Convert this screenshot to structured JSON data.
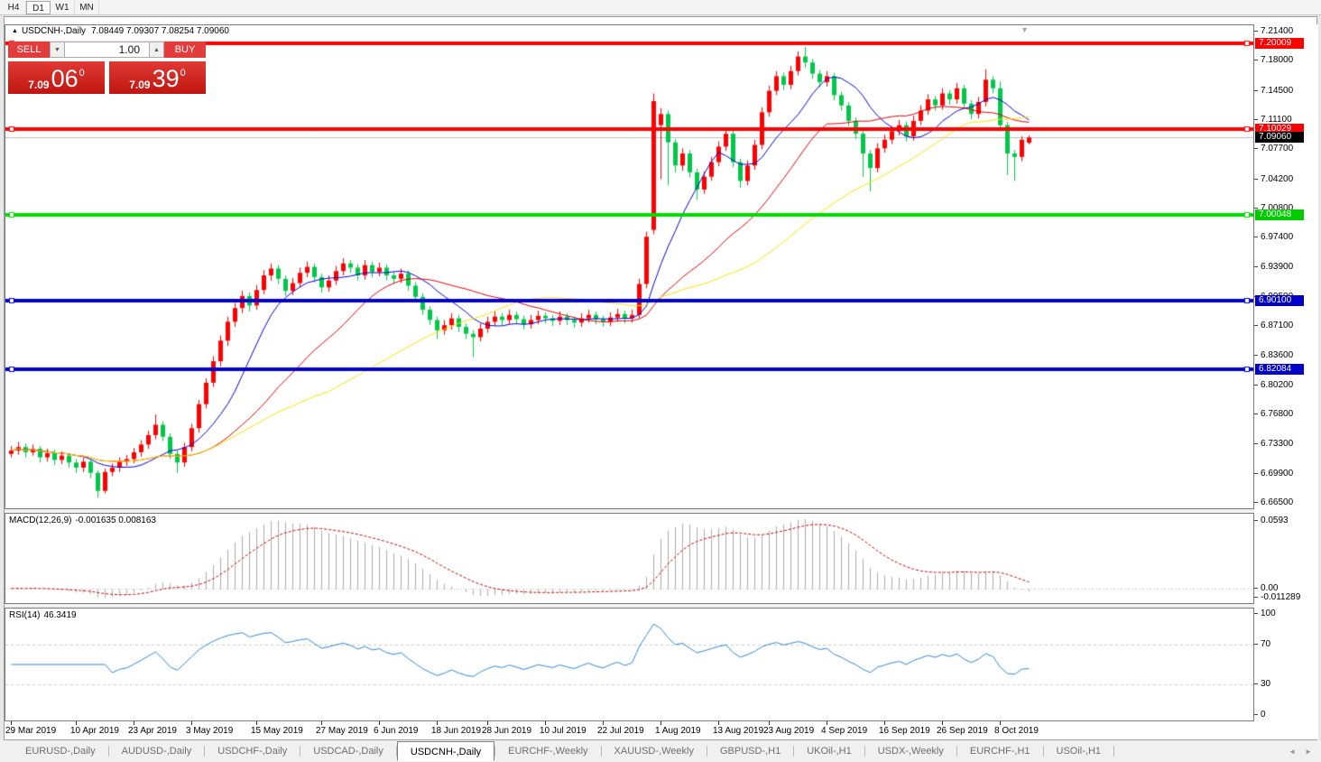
{
  "toolbar": {
    "periods": [
      {
        "label": "H4",
        "active": false
      },
      {
        "label": "D1",
        "active": true
      },
      {
        "label": "W1",
        "active": false
      },
      {
        "label": "MN",
        "active": false
      }
    ]
  },
  "icons": {
    "title_collapse": "▲",
    "chart_shift": "▼",
    "volume_down": "▼",
    "volume_up": "▲",
    "tab_scroll_left": "◄",
    "tab_scroll_right": "►"
  },
  "chart": {
    "symbol": "USDCNH-,Daily",
    "ohlc_text": "7.08449 7.09307 7.08254 7.09060"
  },
  "one_click": {
    "sell_label": "SELL",
    "buy_label": "BUY",
    "volume": "1.00",
    "sell_price_prefix": "7.09",
    "sell_price_big": "06",
    "sell_price_sup": "0",
    "buy_price_prefix": "7.09",
    "buy_price_big": "39",
    "buy_price_sup": "0"
  },
  "price_axis": {
    "ticks": [
      "7.21400",
      "7.18000",
      "7.14500",
      "7.11100",
      "7.07700",
      "7.04200",
      "7.00800",
      "6.97400",
      "6.93900",
      "6.90500",
      "6.87100",
      "6.83600",
      "6.80200",
      "6.76800",
      "6.73300",
      "6.69900",
      "6.66500"
    ],
    "badges": [
      {
        "value": "7.20009",
        "bg": "#FF0000"
      },
      {
        "value": "7.10029",
        "bg": "#FF0000"
      },
      {
        "value": "7.09060",
        "bg": "#000000"
      },
      {
        "value": "7.00048",
        "bg": "#00CC00"
      },
      {
        "value": "6.90100",
        "bg": "#0000C8"
      },
      {
        "value": "6.82084",
        "bg": "#0000C8"
      }
    ]
  },
  "indicators": {
    "macd": {
      "name": "MACD(12,26,9)",
      "values": "-0.001635 0.008163",
      "axis_top": "0.0593",
      "axis_zero": "0.00",
      "axis_bottom": "-0.011289"
    },
    "rsi": {
      "name": "RSI(14)",
      "value": "46.3419",
      "axis": [
        [
          "100",
          100
        ],
        [
          "70",
          70
        ],
        [
          "30",
          30
        ],
        [
          "0",
          0
        ]
      ]
    }
  },
  "tabs": {
    "items": [
      {
        "label": "EURUSD-,Daily",
        "active": false
      },
      {
        "label": "AUDUSD-,Daily",
        "active": false
      },
      {
        "label": "USDCHF-,Daily",
        "active": false
      },
      {
        "label": "USDCAD-,Daily",
        "active": false
      },
      {
        "label": "USDCNH-,Daily",
        "active": true
      },
      {
        "label": "EURCHF-,Weekly",
        "active": false
      },
      {
        "label": "XAUUSD-,Weekly",
        "active": false
      },
      {
        "label": "GBPUSD-,H1",
        "active": false
      },
      {
        "label": "UKOil-,H1",
        "active": false
      },
      {
        "label": "USDX-,Weekly",
        "active": false
      },
      {
        "label": "EURCHF-,H1",
        "active": false
      },
      {
        "label": "USOil-,H1",
        "active": false
      }
    ]
  },
  "chart_data": {
    "type": "candlestick",
    "symbol": "USDCNH",
    "timeframe": "Daily",
    "title": "USDCNH-,Daily",
    "ohlc_current": {
      "open": 7.08449,
      "high": 7.09307,
      "low": 7.08254,
      "close": 7.0906
    },
    "price_range": [
      6.665,
      7.214
    ],
    "current_price": 7.0906,
    "ma_periods": [
      10,
      25,
      45
    ],
    "macd_params": {
      "fast": 12,
      "slow": 26,
      "signal": 9
    },
    "rsi_period": 14,
    "rsi_levels": [
      70,
      30
    ],
    "colors": {
      "up": "#FF0000",
      "down": "#00C94A",
      "ma_fast": "#0000D8",
      "ma_mid": "#DE0000",
      "ma_slow": "#FFE000",
      "hline_red": "#FF0000",
      "hline_green": "#00DC00",
      "hline_blue": "#0000D0",
      "current_line": "#BFBFBF",
      "macd_bar": "#ABABAB",
      "macd_signal": "#CC0000",
      "rsi_line": "#2D87D4",
      "level_dash": "#C9C9C9"
    },
    "hlines": [
      {
        "price": 7.20009,
        "color": "#FF0000"
      },
      {
        "price": 7.10029,
        "color": "#FF0000"
      },
      {
        "price": 7.00048,
        "color": "#00DC00"
      },
      {
        "price": 6.901,
        "color": "#0000D0"
      },
      {
        "price": 6.82084,
        "color": "#0000D0"
      }
    ],
    "x_labels": [
      [
        "29 Mar 2019",
        0
      ],
      [
        "10 Apr 2019",
        9
      ],
      [
        "23 Apr 2019",
        17
      ],
      [
        "3 May 2019",
        25
      ],
      [
        "15 May 2019",
        34
      ],
      [
        "27 May 2019",
        43
      ],
      [
        "6 Jun 2019",
        51
      ],
      [
        "18 Jun 2019",
        59
      ],
      [
        "28 Jun 2019",
        66
      ],
      [
        "10 Jul 2019",
        74
      ],
      [
        "22 Jul 2019",
        82
      ],
      [
        "1 Aug 2019",
        90
      ],
      [
        "13 Aug 2019",
        98
      ],
      [
        "23 Aug 2019",
        105
      ],
      [
        "4 Sep 2019",
        113
      ],
      [
        "16 Sep 2019",
        121
      ],
      [
        "26 Sep 2019",
        129
      ],
      [
        "8 Oct 2019",
        137
      ]
    ],
    "candles": [
      [
        6.722,
        6.731,
        6.718,
        6.726
      ],
      [
        6.726,
        6.736,
        6.721,
        6.73
      ],
      [
        6.73,
        6.734,
        6.718,
        6.724
      ],
      [
        6.724,
        6.733,
        6.72,
        6.728
      ],
      [
        6.728,
        6.731,
        6.712,
        6.718
      ],
      [
        6.718,
        6.728,
        6.713,
        6.723
      ],
      [
        6.723,
        6.727,
        6.709,
        6.715
      ],
      [
        6.715,
        6.725,
        6.71,
        6.72
      ],
      [
        6.72,
        6.723,
        6.706,
        6.712
      ],
      [
        6.712,
        6.716,
        6.7,
        6.706
      ],
      [
        6.706,
        6.718,
        6.701,
        6.713
      ],
      [
        6.713,
        6.716,
        6.694,
        6.7
      ],
      [
        6.7,
        6.703,
        6.671,
        6.679
      ],
      [
        6.679,
        6.705,
        6.676,
        6.701
      ],
      [
        6.701,
        6.711,
        6.696,
        6.706
      ],
      [
        6.706,
        6.718,
        6.701,
        6.713
      ],
      [
        6.713,
        6.721,
        6.708,
        6.716
      ],
      [
        6.716,
        6.729,
        6.711,
        6.724
      ],
      [
        6.724,
        6.738,
        6.719,
        6.733
      ],
      [
        6.733,
        6.749,
        6.728,
        6.744
      ],
      [
        6.744,
        6.768,
        6.739,
        6.756
      ],
      [
        6.756,
        6.76,
        6.737,
        6.742
      ],
      [
        6.742,
        6.746,
        6.716,
        6.722
      ],
      [
        6.722,
        6.726,
        6.7,
        6.712
      ],
      [
        6.712,
        6.735,
        6.707,
        6.73
      ],
      [
        6.73,
        6.757,
        6.725,
        6.752
      ],
      [
        6.752,
        6.785,
        6.747,
        6.78
      ],
      [
        6.78,
        6.81,
        6.775,
        6.805
      ],
      [
        6.805,
        6.836,
        6.8,
        6.83
      ],
      [
        6.83,
        6.86,
        6.824,
        6.854
      ],
      [
        6.854,
        6.882,
        6.848,
        6.876
      ],
      [
        6.876,
        6.898,
        6.87,
        6.892
      ],
      [
        6.892,
        6.912,
        6.886,
        6.906
      ],
      [
        6.906,
        6.91,
        6.888,
        6.895
      ],
      [
        6.895,
        6.919,
        6.89,
        6.913
      ],
      [
        6.913,
        6.936,
        6.908,
        6.93
      ],
      [
        6.93,
        6.944,
        6.924,
        6.938
      ],
      [
        6.938,
        6.942,
        6.92,
        6.926
      ],
      [
        6.926,
        6.93,
        6.906,
        6.912
      ],
      [
        6.912,
        6.927,
        6.907,
        6.921
      ],
      [
        6.921,
        6.939,
        6.916,
        6.933
      ],
      [
        6.933,
        6.946,
        6.928,
        6.94
      ],
      [
        6.94,
        6.944,
        6.922,
        6.928
      ],
      [
        6.928,
        6.932,
        6.91,
        6.916
      ],
      [
        6.916,
        6.93,
        6.911,
        6.924
      ],
      [
        6.924,
        6.941,
        6.919,
        6.935
      ],
      [
        6.935,
        6.95,
        6.93,
        6.944
      ],
      [
        6.944,
        6.948,
        6.933,
        6.939
      ],
      [
        6.939,
        6.943,
        6.924,
        6.93
      ],
      [
        6.93,
        6.948,
        6.925,
        6.942
      ],
      [
        6.942,
        6.946,
        6.928,
        6.934
      ],
      [
        6.934,
        6.945,
        6.929,
        6.939
      ],
      [
        6.939,
        6.943,
        6.924,
        6.93
      ],
      [
        6.93,
        6.934,
        6.92,
        6.926
      ],
      [
        6.926,
        6.938,
        6.921,
        6.932
      ],
      [
        6.932,
        6.936,
        6.912,
        6.918
      ],
      [
        6.918,
        6.922,
        6.899,
        6.905
      ],
      [
        6.905,
        6.909,
        6.884,
        6.89
      ],
      [
        6.89,
        6.894,
        6.872,
        6.878
      ],
      [
        6.878,
        6.882,
        6.856,
        6.866
      ],
      [
        6.866,
        6.878,
        6.861,
        6.872
      ],
      [
        6.872,
        6.886,
        6.867,
        6.88
      ],
      [
        6.88,
        6.884,
        6.864,
        6.87
      ],
      [
        6.87,
        6.874,
        6.856,
        6.862
      ],
      [
        6.862,
        6.866,
        6.835,
        6.858
      ],
      [
        6.858,
        6.874,
        6.853,
        6.868
      ],
      [
        6.868,
        6.882,
        6.863,
        6.876
      ],
      [
        6.876,
        6.888,
        6.871,
        6.882
      ],
      [
        6.882,
        6.886,
        6.872,
        6.878
      ],
      [
        6.878,
        6.89,
        6.873,
        6.884
      ],
      [
        6.884,
        6.888,
        6.873,
        6.879
      ],
      [
        6.879,
        6.883,
        6.867,
        6.873
      ],
      [
        6.873,
        6.884,
        6.868,
        6.878
      ],
      [
        6.878,
        6.889,
        6.873,
        6.883
      ],
      [
        6.883,
        6.887,
        6.874,
        6.88
      ],
      [
        6.88,
        6.884,
        6.871,
        6.877
      ],
      [
        6.877,
        6.888,
        6.872,
        6.882
      ],
      [
        6.882,
        6.886,
        6.872,
        6.878
      ],
      [
        6.878,
        6.882,
        6.869,
        6.875
      ],
      [
        6.875,
        6.886,
        6.87,
        6.88
      ],
      [
        6.88,
        6.89,
        6.875,
        6.884
      ],
      [
        6.884,
        6.888,
        6.873,
        6.879
      ],
      [
        6.879,
        6.883,
        6.87,
        6.876
      ],
      [
        6.876,
        6.887,
        6.871,
        6.881
      ],
      [
        6.881,
        6.891,
        6.876,
        6.885
      ],
      [
        6.885,
        6.889,
        6.874,
        6.88
      ],
      [
        6.88,
        6.89,
        6.875,
        6.884
      ],
      [
        6.884,
        6.926,
        6.88,
        6.92
      ],
      [
        6.92,
        6.981,
        6.915,
        6.975
      ],
      [
        6.983,
        7.142,
        6.978,
        7.133
      ],
      [
        7.105,
        7.125,
        7.042,
        7.118
      ],
      [
        7.118,
        7.122,
        7.035,
        7.085
      ],
      [
        7.085,
        7.089,
        7.05,
        7.058
      ],
      [
        7.058,
        7.078,
        7.052,
        7.072
      ],
      [
        7.072,
        7.076,
        7.044,
        7.05
      ],
      [
        7.05,
        7.054,
        7.018,
        7.03
      ],
      [
        7.03,
        7.051,
        7.025,
        7.045
      ],
      [
        7.045,
        7.068,
        7.04,
        7.062
      ],
      [
        7.062,
        7.086,
        7.057,
        7.08
      ],
      [
        7.08,
        7.101,
        7.075,
        7.095
      ],
      [
        7.095,
        7.099,
        7.056,
        7.062
      ],
      [
        7.062,
        7.066,
        7.032,
        7.04
      ],
      [
        7.04,
        7.064,
        7.035,
        7.058
      ],
      [
        7.058,
        7.088,
        7.053,
        7.082
      ],
      [
        7.082,
        7.126,
        7.077,
        7.12
      ],
      [
        7.12,
        7.151,
        7.115,
        7.145
      ],
      [
        7.145,
        7.168,
        7.14,
        7.162
      ],
      [
        7.162,
        7.166,
        7.146,
        7.152
      ],
      [
        7.152,
        7.174,
        7.147,
        7.168
      ],
      [
        7.168,
        7.191,
        7.163,
        7.185
      ],
      [
        7.185,
        7.196,
        7.172,
        7.178
      ],
      [
        7.178,
        7.182,
        7.159,
        7.165
      ],
      [
        7.165,
        7.169,
        7.149,
        7.155
      ],
      [
        7.155,
        7.168,
        7.15,
        7.162
      ],
      [
        7.162,
        7.166,
        7.134,
        7.14
      ],
      [
        7.14,
        7.144,
        7.122,
        7.128
      ],
      [
        7.128,
        7.132,
        7.104,
        7.11
      ],
      [
        7.11,
        7.114,
        7.089,
        7.095
      ],
      [
        7.095,
        7.099,
        7.045,
        7.072
      ],
      [
        7.072,
        7.076,
        7.028,
        7.055
      ],
      [
        7.055,
        7.084,
        7.05,
        7.078
      ],
      [
        7.078,
        7.094,
        7.073,
        7.088
      ],
      [
        7.088,
        7.104,
        7.083,
        7.098
      ],
      [
        7.098,
        7.111,
        7.093,
        7.105
      ],
      [
        7.105,
        7.109,
        7.086,
        7.092
      ],
      [
        7.092,
        7.116,
        7.087,
        7.11
      ],
      [
        7.11,
        7.128,
        7.105,
        7.122
      ],
      [
        7.122,
        7.141,
        7.117,
        7.135
      ],
      [
        7.135,
        7.139,
        7.122,
        7.128
      ],
      [
        7.128,
        7.148,
        7.123,
        7.142
      ],
      [
        7.142,
        7.146,
        7.129,
        7.135
      ],
      [
        7.135,
        7.154,
        7.13,
        7.148
      ],
      [
        7.148,
        7.152,
        7.124,
        7.13
      ],
      [
        7.13,
        7.134,
        7.112,
        7.118
      ],
      [
        7.118,
        7.138,
        7.113,
        7.132
      ],
      [
        7.132,
        7.17,
        7.127,
        7.158
      ],
      [
        7.158,
        7.162,
        7.142,
        7.148
      ],
      [
        7.148,
        7.156,
        7.1,
        7.105
      ],
      [
        7.105,
        7.109,
        7.047,
        7.072
      ],
      [
        7.072,
        7.076,
        7.04,
        7.068
      ],
      [
        7.068,
        7.092,
        7.063,
        7.088
      ],
      [
        7.0845,
        7.0931,
        7.0825,
        7.0906
      ]
    ]
  }
}
